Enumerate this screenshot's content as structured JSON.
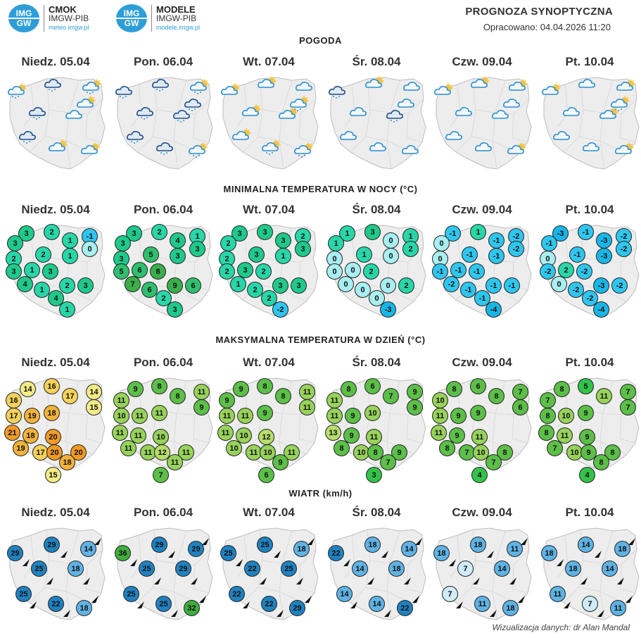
{
  "header": {
    "logo1": {
      "mark_top": "IMG",
      "mark_bottom": "GW",
      "name": "CMOK",
      "org": "IMGW-PIB",
      "url": "meteo.imgw.pl"
    },
    "logo2": {
      "mark_top": "IMG",
      "mark_bottom": "GW",
      "name": "MODELE",
      "org": "IMGW-PIB",
      "url": "modele.imgw.pl"
    },
    "title": "PROGNOZA SYNOPTYCZNA",
    "prepared": "Opracowano: 04.04.2026 11:20"
  },
  "colors": {
    "map_fill": "#ededed",
    "map_stroke": "#bdbdbd",
    "wind_dark": "#1f82c0",
    "wind_mid": "#5fb3e4",
    "wind_light": "#cfeaf8",
    "wind_green": "#3fae3f"
  },
  "sections": {
    "weather": "POGODA",
    "tmin": "MINIMALNA TEMPERATURA W NOCY (°C)",
    "tmax": "MAKSYMALNA TEMPERATURA W DZIEŃ (°C)",
    "wind": "WIATR (km/h)"
  },
  "days": [
    "Niedz. 05.04",
    "Pon. 06.04",
    "Wt. 07.04",
    "Śr. 08.04",
    "Czw. 09.04",
    "Pt. 10.04"
  ],
  "weather_icons": [
    [
      "rain-sun-icon",
      "rain-cloud-icon",
      "rain-sun-icon",
      "rain-cloud-icon",
      "cloud-icon",
      "cloud-sun-icon",
      "rain-cloud-icon",
      "cloud-sun-icon",
      "cloud-sun-icon"
    ],
    [
      "rain-cloud-icon",
      "rain-cloud-icon",
      "rain-sun-icon",
      "rain-cloud-icon",
      "rain-cloud-icon",
      "rain-cloud-icon",
      "rain-cloud-icon",
      "rain-cloud-icon",
      "rain-sun-icon"
    ],
    [
      "cloud-sun-icon",
      "cloud-sun-icon",
      "cloud-icon",
      "cloud-sun-icon",
      "cloud-sun-icon",
      "rain-sun-icon",
      "cloud-sun-icon",
      "rain-sun-icon",
      "rain-sun-icon"
    ],
    [
      "rain-cloud-icon",
      "cloud-sun-icon",
      "cloud-icon",
      "cloud-icon",
      "rain-cloud-icon",
      "cloud-icon",
      "cloud-icon",
      "cloud-icon",
      "cloud-icon"
    ],
    [
      "cloud-sun-icon",
      "cloud-sun-icon",
      "cloud-sun-icon",
      "cloud-icon",
      "cloud-icon",
      "cloud-icon",
      "cloud-icon",
      "cloud-icon",
      "cloud-sun-icon"
    ],
    [
      "cloud-sun-icon",
      "cloud-icon",
      "cloud-sun-icon",
      "cloud-icon",
      "cloud-sun-icon",
      "rain-sun-icon",
      "cloud-icon",
      "cloud-icon",
      "cloud-sun-icon"
    ]
  ],
  "tmin": [
    [
      "3",
      "2",
      "-1",
      "3",
      "1",
      "0",
      "2",
      "2",
      "1",
      "3",
      "1",
      "3",
      "4",
      "1",
      "2",
      "3",
      "4",
      "1"
    ],
    [
      "3",
      "2",
      "1",
      "3",
      "4",
      "3",
      "3",
      "5",
      "3",
      "5",
      "6",
      "8",
      "7",
      "6",
      "9",
      "6",
      "2",
      "3"
    ],
    [
      "3",
      "3",
      "2",
      "2",
      "3",
      "3",
      "2",
      "3",
      "1",
      "2",
      "3",
      "2",
      "1",
      "2",
      "3",
      "3",
      "2",
      "-2"
    ],
    [
      "1",
      "3",
      "1",
      "1",
      "0",
      "2",
      "0",
      "1",
      "0",
      "0",
      "0",
      "2",
      "0",
      "0",
      "0",
      "2",
      "0",
      "-3"
    ],
    [
      "-1",
      "1",
      "-2",
      "0",
      "-1",
      "-2",
      "0",
      "-1",
      "-1",
      "-1",
      "-1",
      "-1",
      "-2",
      "-1",
      "-1",
      "-1",
      "-1",
      "-4"
    ],
    [
      "-3",
      "-1",
      "-2",
      "-1",
      "-3",
      "-2",
      "0",
      "-1",
      "-3",
      "-2",
      "2",
      "-2",
      "0",
      "-2",
      "-3",
      "-2",
      "-2",
      "-4"
    ]
  ],
  "tmax": [
    [
      "14",
      "16",
      "14",
      "16",
      "17",
      "15",
      "17",
      "19",
      "18",
      "21",
      "18",
      "20",
      "19",
      "17",
      "20",
      "20",
      "18",
      "15"
    ],
    [
      "9",
      "8",
      "11",
      "11",
      "8",
      "9",
      "10",
      "11",
      "11",
      "11",
      "11",
      "10",
      "11",
      "11",
      "12",
      "11",
      "11",
      "7"
    ],
    [
      "9",
      "8",
      "11",
      "9",
      "8",
      "11",
      "11",
      "11",
      "9",
      "11",
      "10",
      "12",
      "10",
      "11",
      "10",
      "11",
      "9",
      "6"
    ],
    [
      "8",
      "6",
      "9",
      "11",
      "7",
      "9",
      "11",
      "9",
      "10",
      "13",
      "9",
      "11",
      "8",
      "10",
      "8",
      "9",
      "7",
      "3"
    ],
    [
      "8",
      "6",
      "7",
      "10",
      "8",
      "6",
      "11",
      "9",
      "9",
      "11",
      "9",
      "11",
      "8",
      "7",
      "10",
      "8",
      "7",
      "4"
    ],
    [
      "8",
      "5",
      "7",
      "7",
      "11",
      "7",
      "8",
      "10",
      "9",
      "8",
      "11",
      "9",
      "7",
      "10",
      "9",
      "8",
      "8",
      "4"
    ]
  ],
  "wind": [
    [
      "29",
      "29",
      "14",
      "25",
      "18",
      "25",
      "22",
      "18"
    ],
    [
      "36",
      "29",
      "29",
      "25",
      "29",
      "25",
      "25",
      "32"
    ],
    [
      "25",
      "25",
      "18",
      "22",
      "25",
      "22",
      "22",
      "29"
    ],
    [
      "22",
      "18",
      "14",
      "14",
      "18",
      "14",
      "14",
      "22"
    ],
    [
      "18",
      "18",
      "11",
      "7",
      "14",
      "7",
      "11",
      "18"
    ],
    [
      "18",
      "14",
      "18",
      "18",
      "14",
      "11",
      "7",
      "11"
    ]
  ],
  "footer": "Wizualizacja danych: dr Alan Mandal"
}
